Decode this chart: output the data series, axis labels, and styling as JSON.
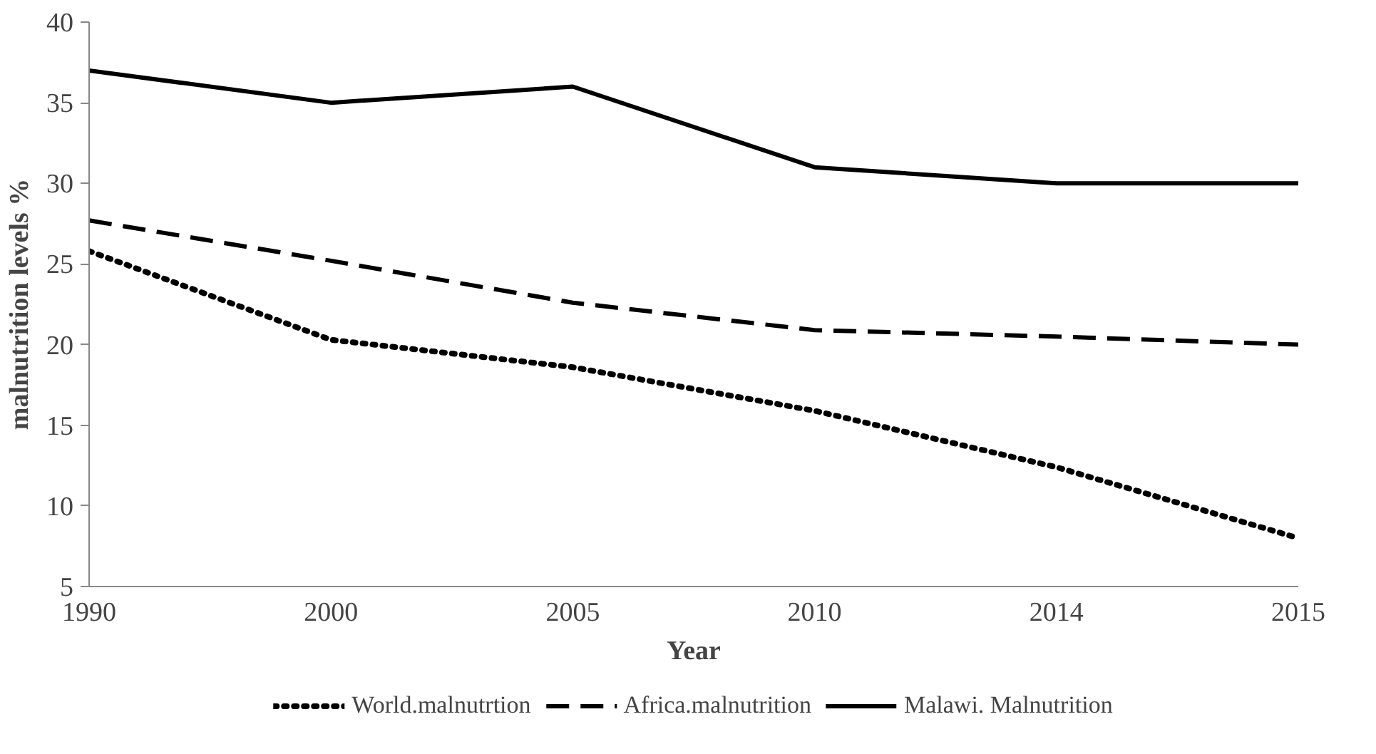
{
  "chart_data": {
    "type": "line",
    "xlabel": "Year",
    "ylabel": "malnutrition levels %",
    "categories": [
      "1990",
      "2000",
      "2005",
      "2010",
      "2014",
      "2015"
    ],
    "series": [
      {
        "name": "World.malnutrtion",
        "color": "#000000",
        "line_style": "dotted",
        "values": [
          25.8,
          20.3,
          18.6,
          15.9,
          12.4,
          8
        ]
      },
      {
        "name": "Africa.malnutrition",
        "color": "#000000",
        "line_style": "dashed",
        "values": [
          27.7,
          25.2,
          22.6,
          20.9,
          20.5,
          20
        ]
      },
      {
        "name": "Malawi. Malnutrition",
        "color": "#000000",
        "line_style": "solid",
        "values": [
          37,
          35,
          36,
          31,
          30,
          30
        ]
      }
    ],
    "ylim": [
      5,
      40
    ],
    "yticks": [
      5,
      10,
      15,
      20,
      25,
      30,
      35,
      40
    ],
    "grid": false,
    "legend": "bottom",
    "marker": "none"
  }
}
